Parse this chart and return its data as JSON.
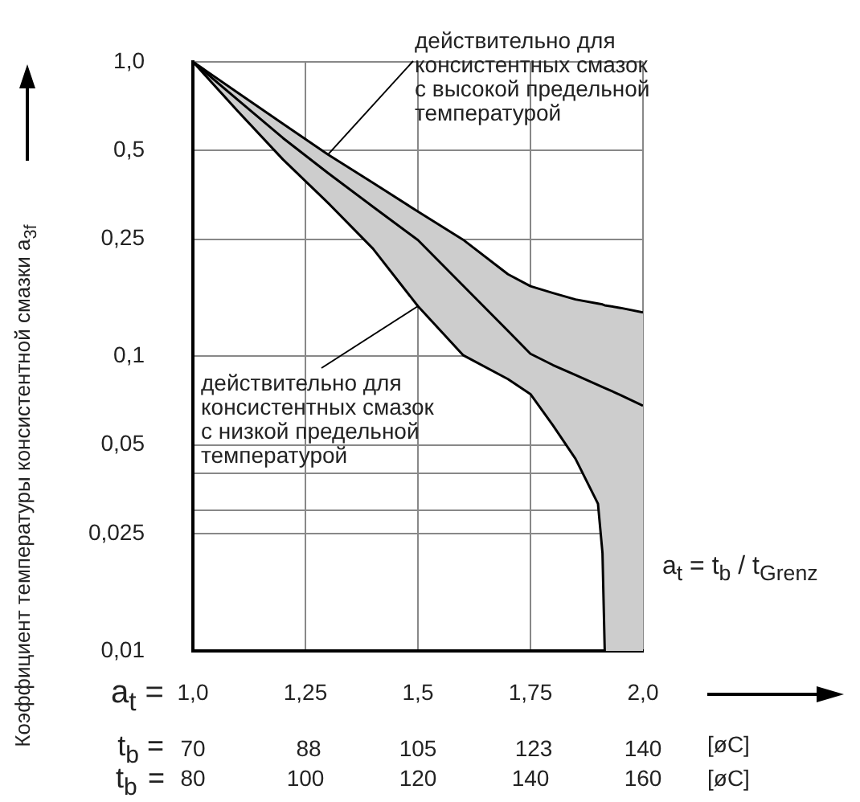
{
  "chart_data": {
    "type": "line",
    "x": [
      1,
      1.1,
      1.2,
      1.3,
      1.4,
      1.5,
      1.6,
      1.7,
      1.75,
      1.8,
      1.85,
      1.9,
      1.91,
      1.915,
      1.95,
      2
    ],
    "series": [
      {
        "color": "#000000",
        "values": [
          1,
          0.742,
          0.551,
          0.419,
          0.322,
          0.248,
          0.174,
          0.122,
          0.102,
          0.0934,
          0.0864,
          0.0799,
          0.0787,
          0.0781,
          0.0739,
          0.068
        ],
        "upper": [
          1,
          0.784,
          0.616,
          0.484,
          0.388,
          0.31,
          0.249,
          0.19,
          0.173,
          0.164,
          0.156,
          0.151,
          0.15,
          0.149,
          0.146,
          0.141
        ],
        "lower": [
          1,
          0.679,
          0.466,
          0.332,
          0.232,
          0.148,
          0.101,
          0.0837,
          0.0744,
          0.0583,
          0.0449,
          0.0316,
          0.0215,
          0.01,
          0.01,
          0.01
        ]
      },
      {
        "color": "#000000",
        "values": [
          1,
          0.784,
          0.616,
          0.484,
          0.388,
          0.31,
          0.249,
          0.19,
          0.173,
          0.164,
          0.156,
          0.151,
          0.15,
          0.149,
          0.146,
          0.141
        ]
      },
      {
        "color": "#000000",
        "values": [
          1,
          0.679,
          0.466,
          0.332,
          0.232,
          0.148,
          0.101,
          0.0837,
          0.0744,
          0.0583,
          0.0449,
          0.0316,
          0.0215,
          0.01,
          null,
          null
        ]
      }
    ],
    "ylabel": "Коэффициент температуры консистентной смазки a$_{3f}$",
    "xlabel": "a$_{t}$ =",
    "x2label": "t$_{b}$ =",
    "xlim": [
      1,
      2
    ],
    "xticks": [
      {
        "value": 1,
        "label": "1,0"
      },
      {
        "value": 1.25,
        "label": "1,25"
      },
      {
        "value": 1.5,
        "label": "1,5"
      },
      {
        "value": 1.75,
        "label": "1,75"
      },
      {
        "value": 2,
        "label": "2,0"
      }
    ],
    "x2lim": [
      70,
      140
    ],
    "x2ticks": [
      70,
      88,
      105,
      123,
      140
    ],
    "ylim": [
      0.01,
      1
    ],
    "yticks": [
      {
        "value": 0.01,
        "label": "0,01"
      },
      {
        "value": 0.025,
        "label": "0,025"
      },
      {
        "value": 0.03,
        "label": null
      },
      {
        "value": 0.04,
        "label": null
      },
      {
        "value": 0.05,
        "label": "0,05"
      },
      {
        "value": 0.1,
        "label": "0,1"
      },
      {
        "value": 0.25,
        "label": "0,25"
      },
      {
        "value": 0.5,
        "label": "0,5"
      },
      {
        "value": 1,
        "label": "1,0"
      }
    ],
    "log": "y",
    "grid": true,
    "legend": false,
    "marker": "none",
    "line_style": "solid",
    "annotations": [
      {
        "text": "действительно для консистентных смазок с высокой предельной температурой",
        "x": 1.3,
        "y": 0.484
      },
      {
        "text": "действительно для консистентных смазок с низкой предельной температурой",
        "x": 1.5,
        "y": 0.148
      },
      "a$_{t}$ = t$_{b}$ / t$_{Grenz}$",
      "[øC]",
      "t$_{b}$ = 80 100 120 140 160 [øC]"
    ]
  }
}
